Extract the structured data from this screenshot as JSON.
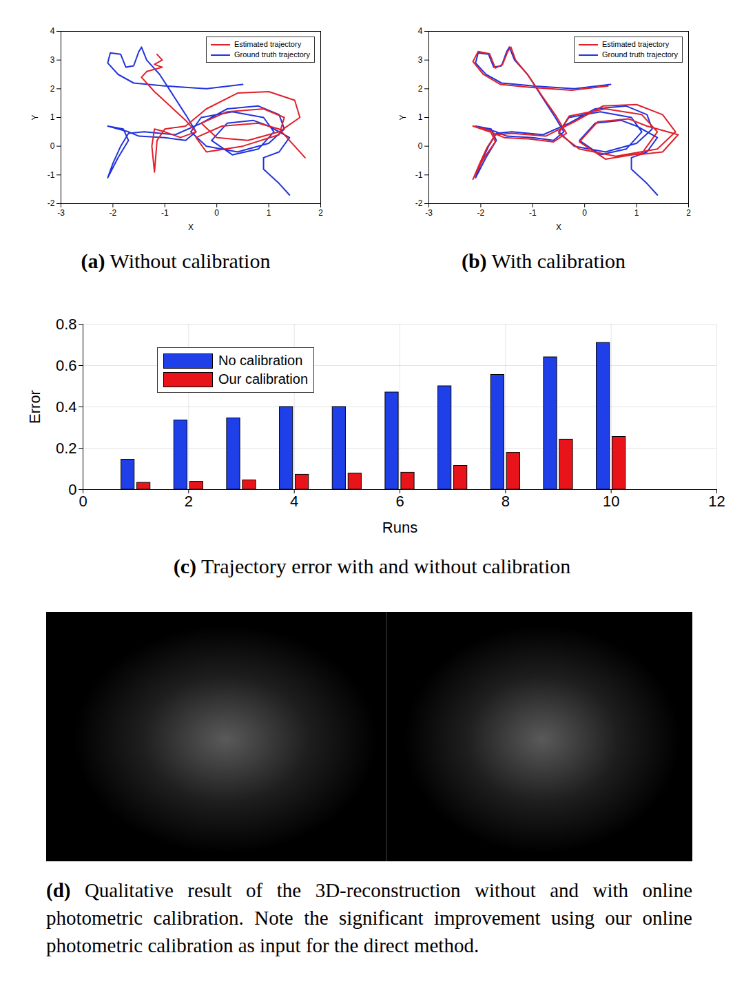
{
  "chart_data": [
    {
      "type": "line",
      "label": "(a)",
      "title": "Without calibration",
      "xlabel": "X",
      "ylabel": "Y",
      "xlim": [
        -3,
        2
      ],
      "xticks": [
        -3,
        -2,
        -1,
        0,
        1,
        2
      ],
      "ylim": [
        -2,
        4
      ],
      "yticks": [
        -2,
        -1,
        0,
        1,
        2,
        3,
        4
      ],
      "grid": false,
      "legend": "top right",
      "series": [
        {
          "name": "Estimated trajectory",
          "color": "#e0202a",
          "x": [
            -1.15,
            -1.05,
            -1.2,
            -1.05,
            -1.35,
            -1.45,
            -1.2,
            -0.9,
            -0.6,
            -0.4,
            -0.7,
            -1.0,
            -1.2,
            -1.25,
            -1.2,
            -1.15,
            -1.0,
            -0.6,
            -0.2,
            0.4,
            1.0,
            1.5,
            1.6,
            1.2,
            0.6,
            0.0,
            -0.3,
            0.2,
            0.9,
            1.3,
            1.2,
            0.5,
            -0.2,
            -0.4,
            0.1,
            0.8,
            1.2,
            1.7
          ],
          "y": [
            3.2,
            3.0,
            2.85,
            2.75,
            2.6,
            2.4,
            1.9,
            1.4,
            0.9,
            0.5,
            0.3,
            0.5,
            0.6,
            0.0,
            -0.9,
            0.2,
            0.6,
            0.7,
            1.3,
            1.85,
            1.9,
            1.6,
            1.0,
            0.5,
            0.2,
            0.3,
            0.8,
            1.2,
            1.3,
            1.0,
            0.4,
            0.0,
            -0.2,
            0.3,
            0.7,
            0.8,
            0.6,
            -0.4
          ]
        },
        {
          "name": "Ground truth trajectory",
          "color": "#2233dd",
          "x": [
            0.5,
            -0.2,
            -1.0,
            -1.6,
            -1.9,
            -2.1,
            -2.05,
            -1.85,
            -1.75,
            -1.6,
            -1.5,
            -1.45,
            -1.35,
            -1.1,
            -0.85,
            -0.6,
            -0.4,
            -0.6,
            -1.0,
            -1.5,
            -1.7,
            -2.1,
            -1.8,
            -1.7,
            -1.9,
            -2.1,
            -2.0,
            -1.85,
            -1.7,
            -1.4,
            -0.8,
            -0.3,
            0.2,
            0.8,
            1.2,
            1.3,
            1.0,
            0.4,
            -0.2,
            -0.5,
            -0.3,
            0.3,
            0.9,
            1.1,
            0.8,
            0.3,
            -0.1,
            0.2,
            0.7,
            1.0,
            1.4,
            1.2,
            0.9,
            0.9,
            1.2,
            1.4
          ],
          "y": [
            2.15,
            2.0,
            2.1,
            2.2,
            2.5,
            2.9,
            3.25,
            3.2,
            2.75,
            2.8,
            3.3,
            3.45,
            3.0,
            2.5,
            1.8,
            1.1,
            0.5,
            0.2,
            0.3,
            0.35,
            0.5,
            0.7,
            0.6,
            0.2,
            -0.4,
            -1.1,
            -0.6,
            0.0,
            0.45,
            0.5,
            0.4,
            0.8,
            1.3,
            1.4,
            1.1,
            0.6,
            0.1,
            -0.2,
            0.0,
            0.5,
            1.0,
            1.2,
            1.0,
            0.5,
            -0.1,
            -0.3,
            0.2,
            0.8,
            0.9,
            0.7,
            0.3,
            -0.2,
            -0.4,
            -0.8,
            -1.3,
            -1.7
          ]
        }
      ]
    },
    {
      "type": "line",
      "label": "(b)",
      "title": "With calibration",
      "xlabel": "X",
      "ylabel": "Y",
      "xlim": [
        -3,
        2
      ],
      "xticks": [
        -3,
        -2,
        -1,
        0,
        1,
        2
      ],
      "ylim": [
        -2,
        4
      ],
      "yticks": [
        -2,
        -1,
        0,
        1,
        2,
        3,
        4
      ],
      "grid": false,
      "legend": "top right",
      "series": [
        {
          "name": "Estimated trajectory",
          "color": "#e0202a",
          "x": [
            0.45,
            -0.25,
            -1.05,
            -1.62,
            -1.95,
            -2.15,
            -2.05,
            -1.83,
            -1.72,
            -1.58,
            -1.48,
            -1.42,
            -1.33,
            -1.08,
            -0.82,
            -0.55,
            -0.35,
            -0.6,
            -1.05,
            -1.55,
            -1.75,
            -2.15,
            -1.82,
            -1.72,
            -1.95,
            -2.15,
            -2.02,
            -1.88,
            -1.72,
            -1.4,
            -0.75,
            -0.2,
            0.35,
            1.0,
            1.5,
            1.75,
            1.4,
            0.6,
            -0.1,
            -0.5,
            -0.3,
            0.4,
            1.1,
            1.4,
            1.1,
            0.4,
            -0.1,
            0.25,
            0.85,
            1.2,
            1.8,
            1.5,
            1.0
          ],
          "y": [
            2.1,
            1.95,
            2.05,
            2.15,
            2.5,
            2.95,
            3.3,
            3.22,
            2.72,
            2.85,
            3.3,
            3.45,
            3.0,
            2.45,
            1.75,
            1.05,
            0.45,
            0.15,
            0.25,
            0.3,
            0.45,
            0.7,
            0.55,
            0.15,
            -0.45,
            -1.15,
            -0.6,
            -0.05,
            0.4,
            0.45,
            0.35,
            0.85,
            1.4,
            1.45,
            1.1,
            0.5,
            -0.1,
            -0.35,
            -0.1,
            0.45,
            1.05,
            1.3,
            1.1,
            0.5,
            -0.25,
            -0.45,
            0.15,
            0.85,
            0.95,
            0.7,
            0.4,
            -0.2,
            -0.3
          ]
        },
        {
          "name": "Ground truth trajectory",
          "color": "#2233dd",
          "x": [
            0.5,
            -0.2,
            -1.0,
            -1.6,
            -1.9,
            -2.1,
            -2.05,
            -1.85,
            -1.75,
            -1.6,
            -1.5,
            -1.45,
            -1.35,
            -1.1,
            -0.85,
            -0.6,
            -0.4,
            -0.6,
            -1.0,
            -1.5,
            -1.7,
            -2.1,
            -1.8,
            -1.7,
            -1.9,
            -2.1,
            -2.0,
            -1.85,
            -1.7,
            -1.4,
            -0.8,
            -0.3,
            0.2,
            0.8,
            1.2,
            1.3,
            1.0,
            0.4,
            -0.2,
            -0.5,
            -0.3,
            0.3,
            0.9,
            1.1,
            0.8,
            0.3,
            -0.1,
            0.2,
            0.7,
            1.0,
            1.4,
            1.2,
            0.9,
            0.9,
            1.2,
            1.4
          ],
          "y": [
            2.15,
            2.0,
            2.1,
            2.2,
            2.5,
            2.9,
            3.25,
            3.2,
            2.75,
            2.8,
            3.3,
            3.45,
            3.0,
            2.5,
            1.8,
            1.1,
            0.5,
            0.2,
            0.3,
            0.35,
            0.5,
            0.7,
            0.6,
            0.2,
            -0.4,
            -1.1,
            -0.6,
            0.0,
            0.45,
            0.5,
            0.4,
            0.8,
            1.3,
            1.4,
            1.1,
            0.6,
            0.1,
            -0.2,
            0.0,
            0.5,
            1.0,
            1.2,
            1.0,
            0.5,
            -0.1,
            -0.3,
            0.2,
            0.8,
            0.9,
            0.7,
            0.3,
            -0.2,
            -0.4,
            -0.8,
            -1.3,
            -1.7
          ]
        }
      ]
    },
    {
      "type": "bar",
      "label": "(c)",
      "title": "Trajectory error with and without calibration",
      "xlabel": "Runs",
      "ylabel": "Error",
      "x": [
        1,
        2,
        3,
        4,
        5,
        6,
        7,
        8,
        9,
        10
      ],
      "xlim": [
        0,
        12
      ],
      "xticks": [
        0,
        2,
        4,
        6,
        8,
        10,
        12
      ],
      "ylim": [
        0,
        0.8
      ],
      "yticks": [
        0,
        0.2,
        0.4,
        0.6,
        0.8
      ],
      "grid": true,
      "legend": "top left",
      "series": [
        {
          "name": "No calibration",
          "color": "#1f3fe8",
          "values": [
            0.145,
            0.335,
            0.345,
            0.4,
            0.4,
            0.47,
            0.5,
            0.555,
            0.64,
            0.71
          ]
        },
        {
          "name": "Our calibration",
          "color": "#e8141a",
          "values": [
            0.033,
            0.038,
            0.045,
            0.072,
            0.078,
            0.082,
            0.115,
            0.178,
            0.242,
            0.255
          ]
        }
      ]
    }
  ],
  "image_panel": {
    "label": "(d)",
    "caption": "Qualitative result of the 3D-reconstruction without and with online photometric calibration. Note the significant improvement using our online photometric calibration as input for the direct method."
  }
}
